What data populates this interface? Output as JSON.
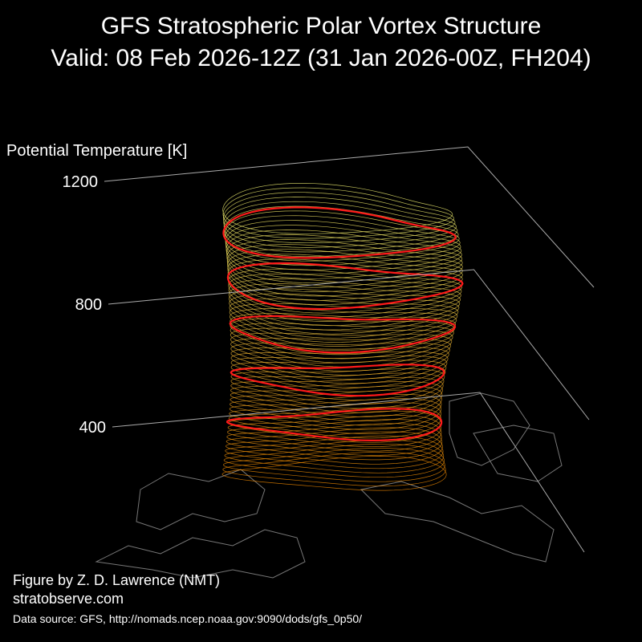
{
  "chart_data": {
    "type": "vortex3d",
    "title": "GFS Stratospheric Polar Vortex Structure",
    "subtitle": "Valid: 08 Feb 2026-12Z  (31 Jan 2026-00Z, FH204)",
    "ylabel": "Potential Temperature [K]",
    "ylim": [
      400,
      1200
    ],
    "yticks": [
      400,
      800,
      1200
    ],
    "annotations": [
      "Figure by Z. D. Lawrence (NMT)",
      "stratobserve.com",
      "Data source: GFS, http://nomads.ncep.noaa.gov:9090/dods/gfs_0p50/"
    ]
  }
}
